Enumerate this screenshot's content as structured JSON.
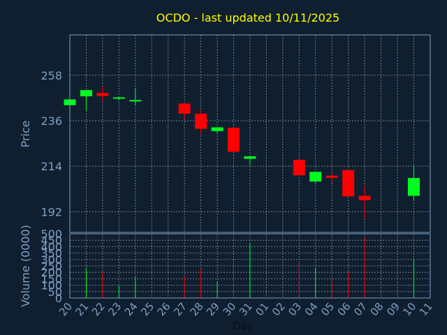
{
  "chart_data": {
    "type": "candlestick",
    "title": "OCDO - last updated 10/11/2025",
    "xlabel": "Day",
    "x_tick_labels": [
      "20",
      "21",
      "22",
      "23",
      "24",
      "25",
      "26",
      "27",
      "28",
      "29",
      "30",
      "31",
      "01",
      "02",
      "03",
      "04",
      "05",
      "06",
      "07",
      "08",
      "09",
      "10",
      "11"
    ],
    "price_panel": {
      "ylabel": "Price",
      "yticks": [
        192,
        214,
        236,
        258
      ],
      "ylim": [
        182.0,
        277.5
      ]
    },
    "volume_panel": {
      "ylabel": "Volume (0000)",
      "yticks": [
        0,
        50,
        100,
        150,
        200,
        250,
        300,
        350,
        400,
        450,
        500
      ],
      "ylim": [
        0,
        500
      ]
    },
    "candles": [
      {
        "day": "20",
        "open": 243.5,
        "high": 246.3,
        "low": 243.0,
        "close": 246.3,
        "volume": 0
      },
      {
        "day": "21",
        "open": 247.8,
        "high": 250.8,
        "low": 240.7,
        "close": 250.8,
        "volume": 235
      },
      {
        "day": "22",
        "open": 249.4,
        "high": 252.6,
        "low": 245.2,
        "close": 248.0,
        "volume": 205
      },
      {
        "day": "23",
        "open": 247.3,
        "high": 247.8,
        "low": 245.8,
        "close": 247.3,
        "volume": 95
      },
      {
        "day": "24",
        "open": 246.0,
        "high": 251.8,
        "low": 243.6,
        "close": 246.0,
        "volume": 165
      },
      {
        "day": "27",
        "open": 244.3,
        "high": 244.3,
        "low": 236.6,
        "close": 239.4,
        "volume": 170
      },
      {
        "day": "28",
        "open": 239.4,
        "high": 241.6,
        "low": 229.2,
        "close": 232.1,
        "volume": 230
      },
      {
        "day": "29",
        "open": 231.0,
        "high": 232.8,
        "low": 229.8,
        "close": 232.8,
        "volume": 130
      },
      {
        "day": "30",
        "open": 232.6,
        "high": 232.6,
        "low": 221.0,
        "close": 221.0,
        "volume": 290
      },
      {
        "day": "31",
        "open": 217.6,
        "high": 218.8,
        "low": 214.5,
        "close": 218.8,
        "volume": 425
      },
      {
        "day": "03",
        "open": 217.1,
        "high": 217.6,
        "low": 209.6,
        "close": 209.6,
        "volume": 285
      },
      {
        "day": "04",
        "open": 206.6,
        "high": 211.3,
        "low": 206.0,
        "close": 211.3,
        "volume": 230
      },
      {
        "day": "05",
        "open": 209.4,
        "high": 211.0,
        "low": 206.1,
        "close": 208.4,
        "volume": 145
      },
      {
        "day": "06",
        "open": 212.1,
        "high": 212.1,
        "low": 199.4,
        "close": 199.4,
        "volume": 205
      },
      {
        "day": "07",
        "open": 199.7,
        "high": 204.8,
        "low": 188.4,
        "close": 197.6,
        "volume": 475
      },
      {
        "day": "10",
        "open": 199.7,
        "high": 214.5,
        "low": 197.6,
        "close": 208.3,
        "volume": 295
      }
    ],
    "colors": {
      "up": "#00ff20",
      "down": "#ff0000",
      "background": "#0f1f30",
      "axis_text": "#7f9fc2",
      "title": "#ffff00"
    }
  }
}
